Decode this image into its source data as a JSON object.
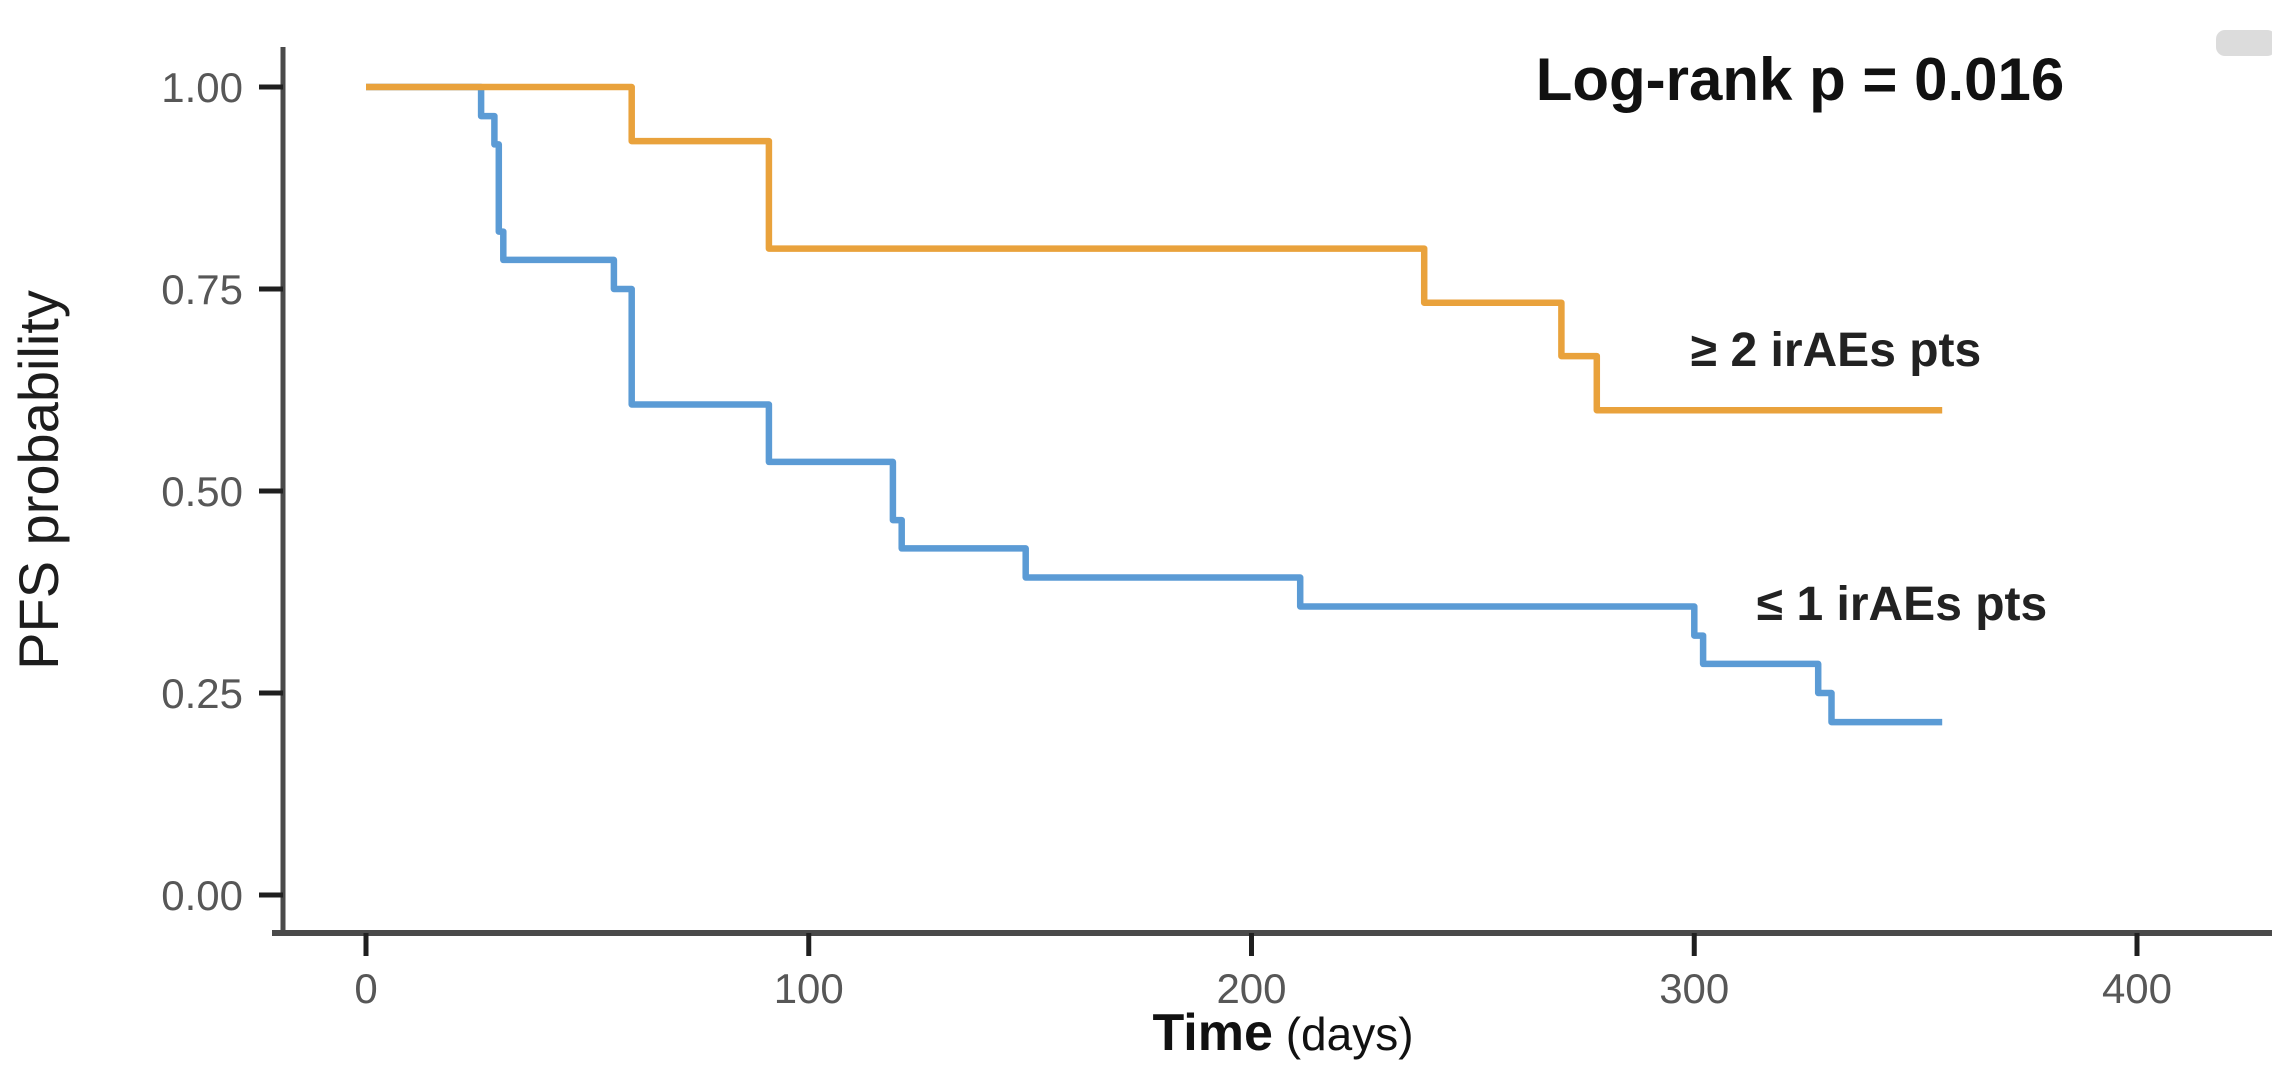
{
  "annotation": {
    "log_rank_label": "Log-rank p = 0.016"
  },
  "chart_data": {
    "type": "line",
    "subtype": "kaplan-meier-step",
    "title": "",
    "annotation": "Log-rank p = 0.016",
    "ylabel": "PFS probability",
    "xlabel_main": "Time",
    "xlabel_unit": "(days)",
    "x_ticks": [
      0,
      100,
      200,
      300,
      400
    ],
    "y_ticks": [
      "0.00",
      "0.25",
      "0.50",
      "0.75",
      "1.00"
    ],
    "xlim": [
      0,
      400
    ],
    "ylim": [
      0,
      1.0
    ],
    "grid": false,
    "legend_position": "inline-curve-labels",
    "series": [
      {
        "name": "le1-iraes",
        "label": "≤ 1 irAEs pts",
        "color": "#5B9BD5",
        "label_anchor": {
          "t": 347,
          "p": 0.36
        },
        "points": [
          [
            0,
            1.0
          ],
          [
            26,
            0.964
          ],
          [
            29,
            0.929
          ],
          [
            30,
            0.821
          ],
          [
            31,
            0.786
          ],
          [
            56,
            0.75
          ],
          [
            60,
            0.607
          ],
          [
            91,
            0.536
          ],
          [
            119,
            0.464
          ],
          [
            121,
            0.429
          ],
          [
            149,
            0.393
          ],
          [
            211,
            0.357
          ],
          [
            300,
            0.321
          ],
          [
            302,
            0.286
          ],
          [
            328,
            0.25
          ],
          [
            331,
            0.214
          ],
          [
            356,
            0.214
          ]
        ]
      },
      {
        "name": "ge2-iraes",
        "label": "≥ 2 irAEs pts",
        "color": "#E9A23C",
        "label_anchor": {
          "t": 332,
          "p": 0.675
        },
        "points": [
          [
            0,
            1.0
          ],
          [
            60,
            0.933
          ],
          [
            91,
            0.8
          ],
          [
            239,
            0.733
          ],
          [
            270,
            0.667
          ],
          [
            278,
            0.6
          ],
          [
            356,
            0.6
          ]
        ]
      }
    ]
  }
}
